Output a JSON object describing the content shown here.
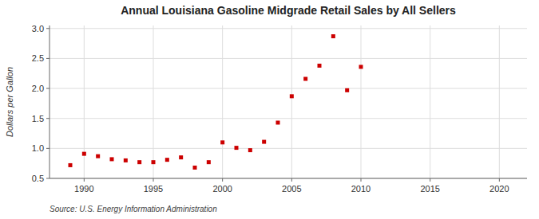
{
  "chart_data": {
    "type": "scatter",
    "title": "Annual Louisiana Gasoline Midgrade Retail Sales by All Sellers",
    "y_label": "Dollars per Gallon",
    "source": "Source: U.S. Energy Information Administration",
    "x": [
      1989,
      1990,
      1991,
      1992,
      1993,
      1994,
      1995,
      1996,
      1997,
      1998,
      1999,
      2000,
      2001,
      2002,
      2003,
      2004,
      2005,
      2006,
      2007,
      2008,
      2009,
      2010
    ],
    "values": [
      0.72,
      0.91,
      0.87,
      0.82,
      0.8,
      0.77,
      0.77,
      0.81,
      0.85,
      0.68,
      0.77,
      1.1,
      1.01,
      0.97,
      1.11,
      1.43,
      1.87,
      2.16,
      2.38,
      2.87,
      1.97,
      2.36
    ],
    "color": "#cc0000",
    "marker": "square",
    "xlim": [
      1987.5,
      2022
    ],
    "ylim": [
      0.5,
      3.05
    ],
    "xticks": [
      1990,
      1995,
      2000,
      2005,
      2010,
      2015,
      2020
    ],
    "yticks": [
      0.5,
      {
        "value": 1.0,
        "label": "1.0"
      },
      1.5,
      {
        "value": 2.0,
        "label": "2.0"
      },
      2.5,
      {
        "value": 3.0,
        "label": "3.0"
      }
    ],
    "grid": true
  }
}
